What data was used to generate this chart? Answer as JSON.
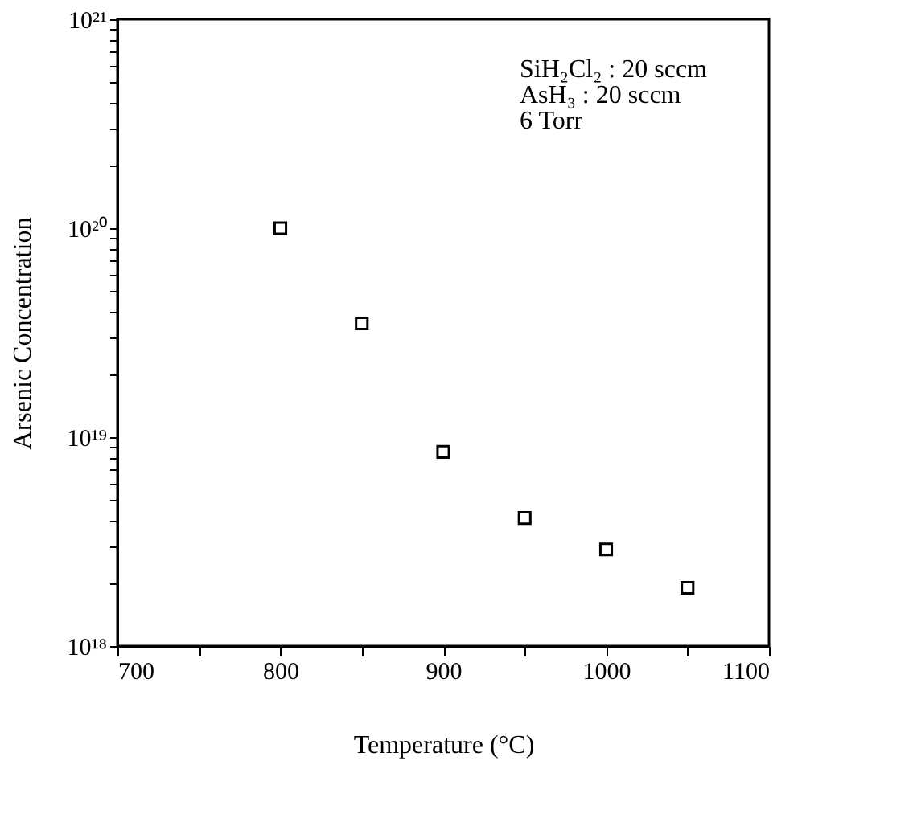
{
  "chart_data": {
    "type": "scatter",
    "xlabel": "Temperature (°C)",
    "ylabel": "Arsenic Concentration",
    "x": [
      800,
      850,
      900,
      950,
      1000,
      1050
    ],
    "values": [
      1e+20,
      3.5e+19,
      8.5e+18,
      4.1e+18,
      2.9e+18,
      1.9e+18
    ],
    "color": "#000000",
    "marker": "square",
    "log": "y",
    "grid": false,
    "xlim": [
      700,
      1100
    ],
    "xticks": [
      700,
      {
        "value": 750,
        "label": null
      },
      800,
      {
        "value": 850,
        "label": null
      },
      900,
      {
        "value": 950,
        "label": null
      },
      1000,
      {
        "value": 1050,
        "label": null
      },
      1100
    ],
    "ylim": [
      1e+18,
      1e+21
    ],
    "yticks": [
      {
        "value": 1e+18,
        "label": "10¹⁸"
      },
      {
        "value": 2e+18,
        "label": null
      },
      {
        "value": 3e+18,
        "label": null
      },
      {
        "value": 4e+18,
        "label": null
      },
      {
        "value": 5e+18,
        "label": null
      },
      {
        "value": 6e+18,
        "label": null
      },
      {
        "value": 7e+18,
        "label": null
      },
      {
        "value": 8e+18,
        "label": null
      },
      {
        "value": 9e+18,
        "label": null
      },
      {
        "value": 1e+19,
        "label": "10¹⁹"
      },
      {
        "value": 2e+19,
        "label": null
      },
      {
        "value": 3e+19,
        "label": null
      },
      {
        "value": 4e+19,
        "label": null
      },
      {
        "value": 5e+19,
        "label": null
      },
      {
        "value": 6e+19,
        "label": null
      },
      {
        "value": 7e+19,
        "label": null
      },
      {
        "value": 8e+19,
        "label": null
      },
      {
        "value": 9e+19,
        "label": null
      },
      {
        "value": 1e+20,
        "label": "10²⁰"
      },
      {
        "value": 2e+20,
        "label": null
      },
      {
        "value": 3e+20,
        "label": null
      },
      {
        "value": 4e+20,
        "label": null
      },
      {
        "value": 5e+20,
        "label": null
      },
      {
        "value": 6e+20,
        "label": null
      },
      {
        "value": 7e+20,
        "label": null
      },
      {
        "value": 8e+20,
        "label": null
      },
      {
        "value": 9e+20,
        "label": null
      },
      {
        "value": 1e+21,
        "label": "10²¹"
      }
    ],
    "annotations": [
      "SiH₂Cl₂ : 20 sccm",
      "AsH₃     : 20 sccm",
      "6 Torr"
    ]
  }
}
